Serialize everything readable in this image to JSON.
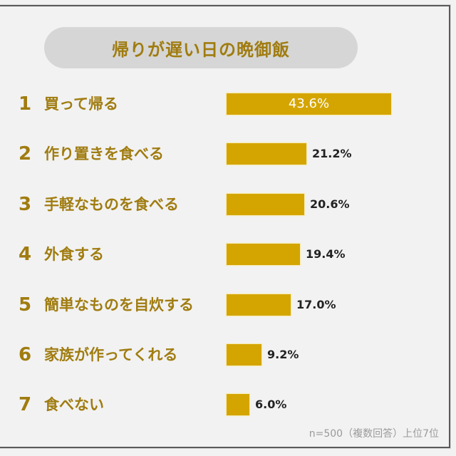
{
  "title": "帰りが遅い日の晩御飯",
  "footnote": "n=500（複数回答）上位7位",
  "colors": {
    "bar": "#d4a500",
    "text_gold": "#a07c10",
    "pill_bg": "#d6d6d6",
    "background": "#f2f2f2"
  },
  "rows": [
    {
      "rank": "1",
      "label": "買って帰る",
      "value": 43.6,
      "value_label": "43.6%"
    },
    {
      "rank": "2",
      "label": "作り置きを食べる",
      "value": 21.2,
      "value_label": "21.2%"
    },
    {
      "rank": "3",
      "label": "手軽なものを食べる",
      "value": 20.6,
      "value_label": "20.6%"
    },
    {
      "rank": "4",
      "label": "外食する",
      "value": 19.4,
      "value_label": "19.4%"
    },
    {
      "rank": "5",
      "label": "簡単なものを自炊する",
      "value": 17.0,
      "value_label": "17.0%"
    },
    {
      "rank": "6",
      "label": "家族が作ってくれる",
      "value": 9.2,
      "value_label": "9.2%"
    },
    {
      "rank": "7",
      "label": "食べない",
      "value": 6.0,
      "value_label": "6.0%"
    }
  ],
  "chart_data": {
    "type": "bar",
    "orientation": "horizontal",
    "title": "帰りが遅い日の晩御飯",
    "categories": [
      "買って帰る",
      "作り置きを食べる",
      "手軽なものを食べる",
      "外食する",
      "簡単なものを自炊する",
      "家族が作ってくれる",
      "食べない"
    ],
    "values": [
      43.6,
      21.2,
      20.6,
      19.4,
      17.0,
      9.2,
      6.0
    ],
    "unit": "%",
    "ranks": [
      1,
      2,
      3,
      4,
      5,
      6,
      7
    ],
    "xlabel": "",
    "ylabel": "",
    "grid": false,
    "legend": null,
    "annotations": [
      "n=500（複数回答）上位7位"
    ]
  }
}
